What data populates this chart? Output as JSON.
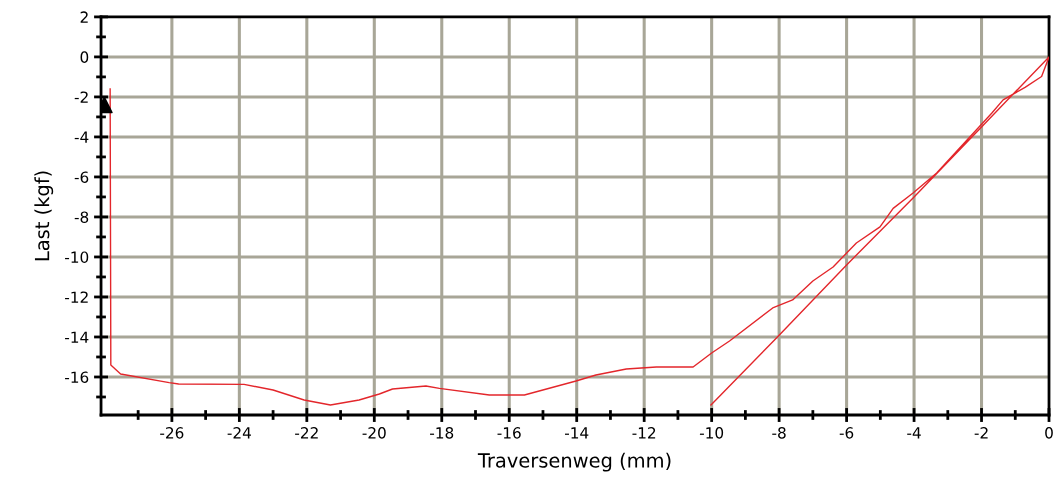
{
  "chart_data": {
    "type": "line",
    "xlabel": "Traversenweg (mm)",
    "ylabel": "Last (kgf)",
    "xlim": [
      -28.1,
      0
    ],
    "ylim": [
      -17.9,
      2
    ],
    "xticks": [
      {
        "value": -27,
        "label": null
      },
      -26,
      {
        "value": -25,
        "label": null
      },
      -24,
      {
        "value": -23,
        "label": null
      },
      -22,
      {
        "value": -21,
        "label": null
      },
      -20,
      {
        "value": -19,
        "label": null
      },
      -18,
      {
        "value": -17,
        "label": null
      },
      -16,
      {
        "value": -15,
        "label": null
      },
      -14,
      {
        "value": -13,
        "label": null
      },
      -12,
      {
        "value": -11,
        "label": null
      },
      -10,
      {
        "value": -9,
        "label": null
      },
      -8,
      {
        "value": -7,
        "label": null
      },
      -6,
      {
        "value": -5,
        "label": null
      },
      -4,
      {
        "value": -3,
        "label": null
      },
      -2,
      {
        "value": -1,
        "label": null
      },
      0
    ],
    "yticks": [
      {
        "value": -17,
        "label": null
      },
      -16,
      {
        "value": -15,
        "label": null
      },
      -14,
      {
        "value": -13,
        "label": null
      },
      -12,
      {
        "value": -11,
        "label": null
      },
      -10,
      {
        "value": -9,
        "label": null
      },
      -8,
      {
        "value": -7,
        "label": null
      },
      -6,
      {
        "value": -5,
        "label": null
      },
      -4,
      {
        "value": -3,
        "label": null
      },
      -2,
      {
        "value": -1,
        "label": null
      },
      0,
      {
        "value": 1,
        "label": null
      },
      2
    ],
    "grid": true,
    "line_style": "solid",
    "series": [
      {
        "color": "#e3262b",
        "x": [
          -27.83,
          -27.81,
          -27.52,
          -26.08,
          -25.8,
          -23.86,
          -23.0,
          -22.08,
          -21.3,
          -20.45,
          -19.85,
          -19.46,
          -18.47,
          -18.07,
          -16.59,
          -15.55,
          -14.02,
          -13.43,
          -12.53,
          -11.64,
          -10.55,
          -10.0,
          -9.47,
          -8.19,
          -7.6,
          -7.0,
          -6.4,
          -5.71,
          -5.01,
          -4.62,
          -4.03,
          -3.33,
          -1.7,
          -1.36,
          -0.71,
          -0.22,
          0,
          -2.0,
          -4.0,
          -6.0,
          -8.05,
          -10.02
        ],
        "values": [
          -1.6,
          -15.4,
          -15.85,
          -16.28,
          -16.35,
          -16.37,
          -16.65,
          -17.15,
          -17.4,
          -17.15,
          -16.85,
          -16.6,
          -16.45,
          -16.57,
          -16.9,
          -16.9,
          -16.2,
          -15.9,
          -15.6,
          -15.5,
          -15.5,
          -14.8,
          -14.2,
          -12.55,
          -12.15,
          -11.2,
          -10.5,
          -9.3,
          -8.5,
          -7.57,
          -6.8,
          -5.8,
          -2.82,
          -2.15,
          -1.52,
          -0.98,
          0,
          -3.5,
          -7.0,
          -10.4,
          -14.0,
          -17.4
        ]
      },
      {
        "type": "scatter",
        "color": "#000000",
        "marker": "triangle",
        "x": [
          -28.0
        ],
        "values": [
          -2.4
        ]
      }
    ]
  }
}
